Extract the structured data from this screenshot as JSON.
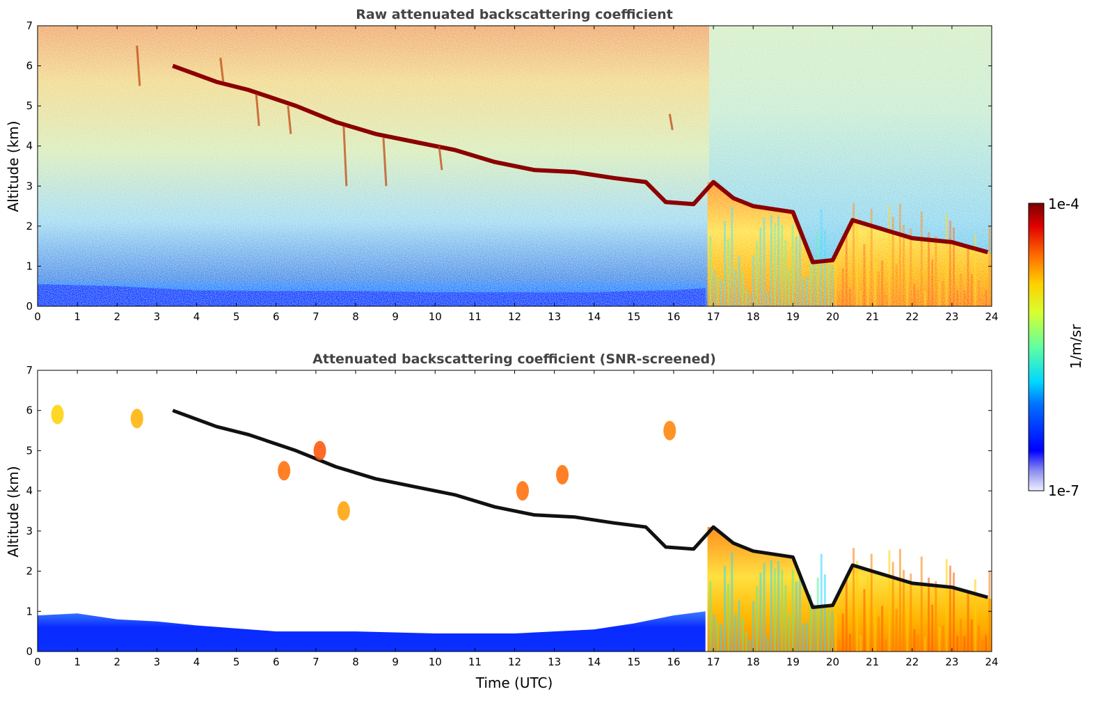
{
  "chart_data": [
    {
      "type": "heatmap",
      "title": "Raw attenuated backscattering coefficient",
      "xlabel": "",
      "ylabel": "Altitude (km)",
      "xlim": [
        0,
        24
      ],
      "ylim": [
        0,
        7
      ],
      "x_ticks": [
        "0",
        "1",
        "2",
        "3",
        "4",
        "5",
        "6",
        "7",
        "8",
        "9",
        "10",
        "11",
        "12",
        "13",
        "14",
        "15",
        "16",
        "17",
        "18",
        "19",
        "20",
        "21",
        "22",
        "23",
        "24"
      ],
      "y_ticks": [
        "0",
        "1",
        "2",
        "3",
        "4",
        "5",
        "6",
        "7"
      ],
      "cloud_layer": {
        "time": [
          3.4,
          4.5,
          5.3,
          6.5,
          7.5,
          8.5,
          9.5,
          10.5,
          11.5,
          12.5,
          13.5,
          14.5,
          15.3,
          15.8,
          16.5,
          17.0,
          17.5,
          18.0,
          19.0,
          19.5,
          20.0,
          20.5,
          21.0,
          22.0,
          23.0,
          23.9
        ],
        "altitude": [
          6.0,
          5.6,
          5.4,
          5.0,
          4.6,
          4.3,
          4.1,
          3.9,
          3.6,
          3.4,
          3.35,
          3.2,
          3.1,
          2.6,
          2.55,
          3.1,
          2.7,
          2.5,
          2.35,
          1.1,
          1.15,
          2.15,
          2.0,
          1.7,
          1.6,
          1.35
        ]
      },
      "boundary_layer_top": {
        "time": [
          0,
          2,
          3,
          4,
          6,
          8,
          10,
          12,
          14,
          15,
          16,
          16.8
        ],
        "altitude": [
          0.55,
          0.5,
          0.45,
          0.4,
          0.38,
          0.38,
          0.35,
          0.35,
          0.35,
          0.38,
          0.4,
          0.45
        ]
      }
    },
    {
      "type": "heatmap",
      "title": "Attenuated backscattering coefficient (SNR-screened)",
      "xlabel": "Time (UTC)",
      "ylabel": "Altitude (km)",
      "xlim": [
        0,
        24
      ],
      "ylim": [
        0,
        7
      ],
      "x_ticks": [
        "0",
        "1",
        "2",
        "3",
        "4",
        "5",
        "6",
        "7",
        "8",
        "9",
        "10",
        "11",
        "12",
        "13",
        "14",
        "15",
        "16",
        "17",
        "18",
        "19",
        "20",
        "21",
        "22",
        "23",
        "24"
      ],
      "y_ticks": [
        "0",
        "1",
        "2",
        "3",
        "4",
        "5",
        "6",
        "7"
      ],
      "boundary_layer_top": {
        "time": [
          0,
          1,
          2,
          3,
          4,
          6,
          8,
          10,
          12,
          14,
          15,
          16,
          16.8
        ],
        "altitude": [
          0.9,
          0.95,
          0.8,
          0.75,
          0.65,
          0.5,
          0.5,
          0.45,
          0.45,
          0.55,
          0.7,
          0.9,
          1.0
        ]
      }
    }
  ],
  "colorbar": {
    "label": "1/m/sr",
    "max_label": "1e-4",
    "min_label": "1e-7",
    "colormap": "jet",
    "scale": "log"
  }
}
